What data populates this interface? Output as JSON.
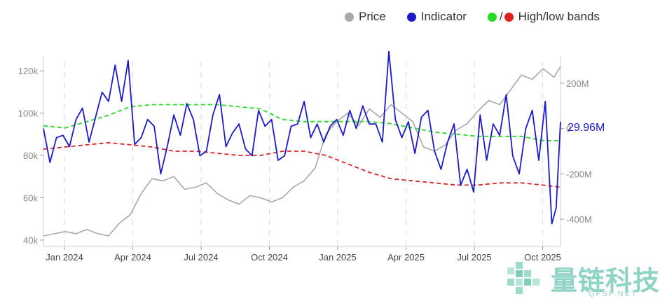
{
  "legend": {
    "price": "Price",
    "indicator": "Indicator",
    "bands": "High/low bands",
    "bands_slash": "/"
  },
  "colors": {
    "price": "#a8a8a8",
    "indicator": "#1a1acc",
    "high_band": "#22dd22",
    "low_band": "#dd2222",
    "callout": "#1a1acc"
  },
  "callout": {
    "label": "29.96M"
  },
  "watermark": {
    "text": "量链科技",
    "sub": "QFSP.NET"
  },
  "chart_data": {
    "type": "line",
    "title": "",
    "x_ticks": [
      "Jan 2024",
      "Apr 2024",
      "Jul 2024",
      "Oct 2024",
      "Jan 2025",
      "Apr 2025",
      "Jul 2025",
      "Oct 2025"
    ],
    "y_left_ticks": [
      "120k",
      "100k",
      "80k",
      "60k",
      "40k"
    ],
    "y_left_values": [
      120000,
      100000,
      80000,
      60000,
      40000
    ],
    "y_left_range": [
      37000,
      127000
    ],
    "y_right_ticks": [
      "200M",
      "0",
      "-200M",
      "-400M"
    ],
    "y_right_values": [
      200,
      0,
      -200,
      -400
    ],
    "y_right_range": [
      -520,
      320
    ],
    "x_range": [
      0,
      23.8
    ],
    "series": [
      {
        "name": "Price",
        "axis": "left",
        "x": [
          0,
          0.5,
          1,
          1.5,
          2,
          2.5,
          3,
          3.5,
          4,
          4.5,
          5,
          5.5,
          6,
          6.5,
          7,
          7.5,
          8,
          8.5,
          9,
          9.5,
          10,
          10.5,
          11,
          11.5,
          12,
          12.5,
          13,
          13.5,
          14,
          14.5,
          15,
          15.5,
          16,
          16.5,
          17,
          17.5,
          18,
          18.5,
          19,
          19.5,
          20,
          20.5,
          21,
          21.5,
          22,
          22.5,
          23,
          23.5,
          23.8
        ],
        "values": [
          42000,
          43000,
          44000,
          43000,
          45000,
          43000,
          42000,
          48000,
          52000,
          62000,
          69000,
          68000,
          70000,
          64000,
          65000,
          67000,
          62000,
          59000,
          57000,
          61000,
          60000,
          58000,
          60000,
          65000,
          68000,
          74000,
          90000,
          96000,
          100000,
          94000,
          102000,
          98000,
          104000,
          100000,
          96000,
          84000,
          82000,
          85000,
          92000,
          95000,
          101000,
          106000,
          104000,
          111000,
          118000,
          116000,
          121000,
          117000,
          122000
        ],
        "values_note": "smoothed series"
      },
      {
        "name": "Indicator",
        "axis": "right",
        "x": [
          0,
          0.3,
          0.6,
          0.9,
          1.2,
          1.5,
          1.8,
          2.1,
          2.4,
          2.7,
          3.0,
          3.3,
          3.6,
          3.9,
          4.2,
          4.5,
          4.8,
          5.1,
          5.4,
          5.7,
          6.0,
          6.3,
          6.6,
          6.9,
          7.2,
          7.5,
          7.8,
          8.1,
          8.4,
          8.7,
          9.0,
          9.3,
          9.6,
          9.9,
          10.2,
          10.5,
          10.8,
          11.1,
          11.4,
          11.7,
          12.0,
          12.3,
          12.6,
          12.9,
          13.2,
          13.5,
          13.8,
          14.1,
          14.4,
          14.7,
          15.0,
          15.3,
          15.6,
          15.9,
          16.2,
          16.5,
          16.8,
          17.1,
          17.4,
          17.7,
          18.0,
          18.3,
          18.6,
          18.9,
          19.2,
          19.5,
          19.8,
          20.1,
          20.4,
          20.7,
          21.0,
          21.3,
          21.6,
          21.9,
          22.2,
          22.5,
          22.8,
          23.1,
          23.4,
          23.6,
          23.8
        ],
        "values": [
          0,
          -150,
          -40,
          -30,
          -80,
          40,
          90,
          -60,
          50,
          160,
          120,
          280,
          120,
          300,
          -70,
          -40,
          40,
          10,
          -200,
          -80,
          60,
          -30,
          110,
          40,
          -120,
          -100,
          60,
          150,
          -80,
          -20,
          20,
          -90,
          -120,
          80,
          10,
          40,
          -140,
          -120,
          10,
          20,
          120,
          -40,
          20,
          -60,
          10,
          40,
          -30,
          80,
          0,
          100,
          20,
          20,
          -60,
          340,
          40,
          -40,
          30,
          -110,
          50,
          80,
          -100,
          -180,
          -60,
          20,
          -250,
          -180,
          -280,
          60,
          -140,
          20,
          -30,
          150,
          -120,
          -200,
          0,
          80,
          -140,
          120,
          -420,
          -350,
          30
        ],
        "values_note": "smoothed series (millions)"
      },
      {
        "name": "High band",
        "axis": "left",
        "x": [
          0,
          1,
          2,
          3,
          4,
          5,
          6,
          7,
          8,
          9,
          10,
          11,
          12,
          13,
          14,
          15,
          16,
          17,
          18,
          19,
          20,
          21,
          22,
          23,
          23.8
        ],
        "values": [
          94000,
          93000,
          96000,
          99000,
          103000,
          104000,
          104000,
          104000,
          104000,
          103000,
          102000,
          97000,
          96000,
          96000,
          96000,
          96000,
          95000,
          93000,
          91000,
          90000,
          89000,
          89000,
          89000,
          87000,
          87000
        ]
      },
      {
        "name": "Low band",
        "axis": "left",
        "x": [
          0,
          1,
          2,
          3,
          4,
          5,
          6,
          7,
          8,
          9,
          10,
          11,
          12,
          13,
          14,
          15,
          16,
          17,
          18,
          19,
          20,
          21,
          22,
          23,
          23.8
        ],
        "values": [
          83000,
          84000,
          85000,
          86000,
          85000,
          84000,
          82000,
          82000,
          81000,
          80000,
          80000,
          82000,
          82000,
          80000,
          76000,
          72000,
          69000,
          68000,
          67000,
          66000,
          66000,
          67000,
          67000,
          66000,
          65000
        ]
      }
    ],
    "vertical_gridlines": true
  }
}
